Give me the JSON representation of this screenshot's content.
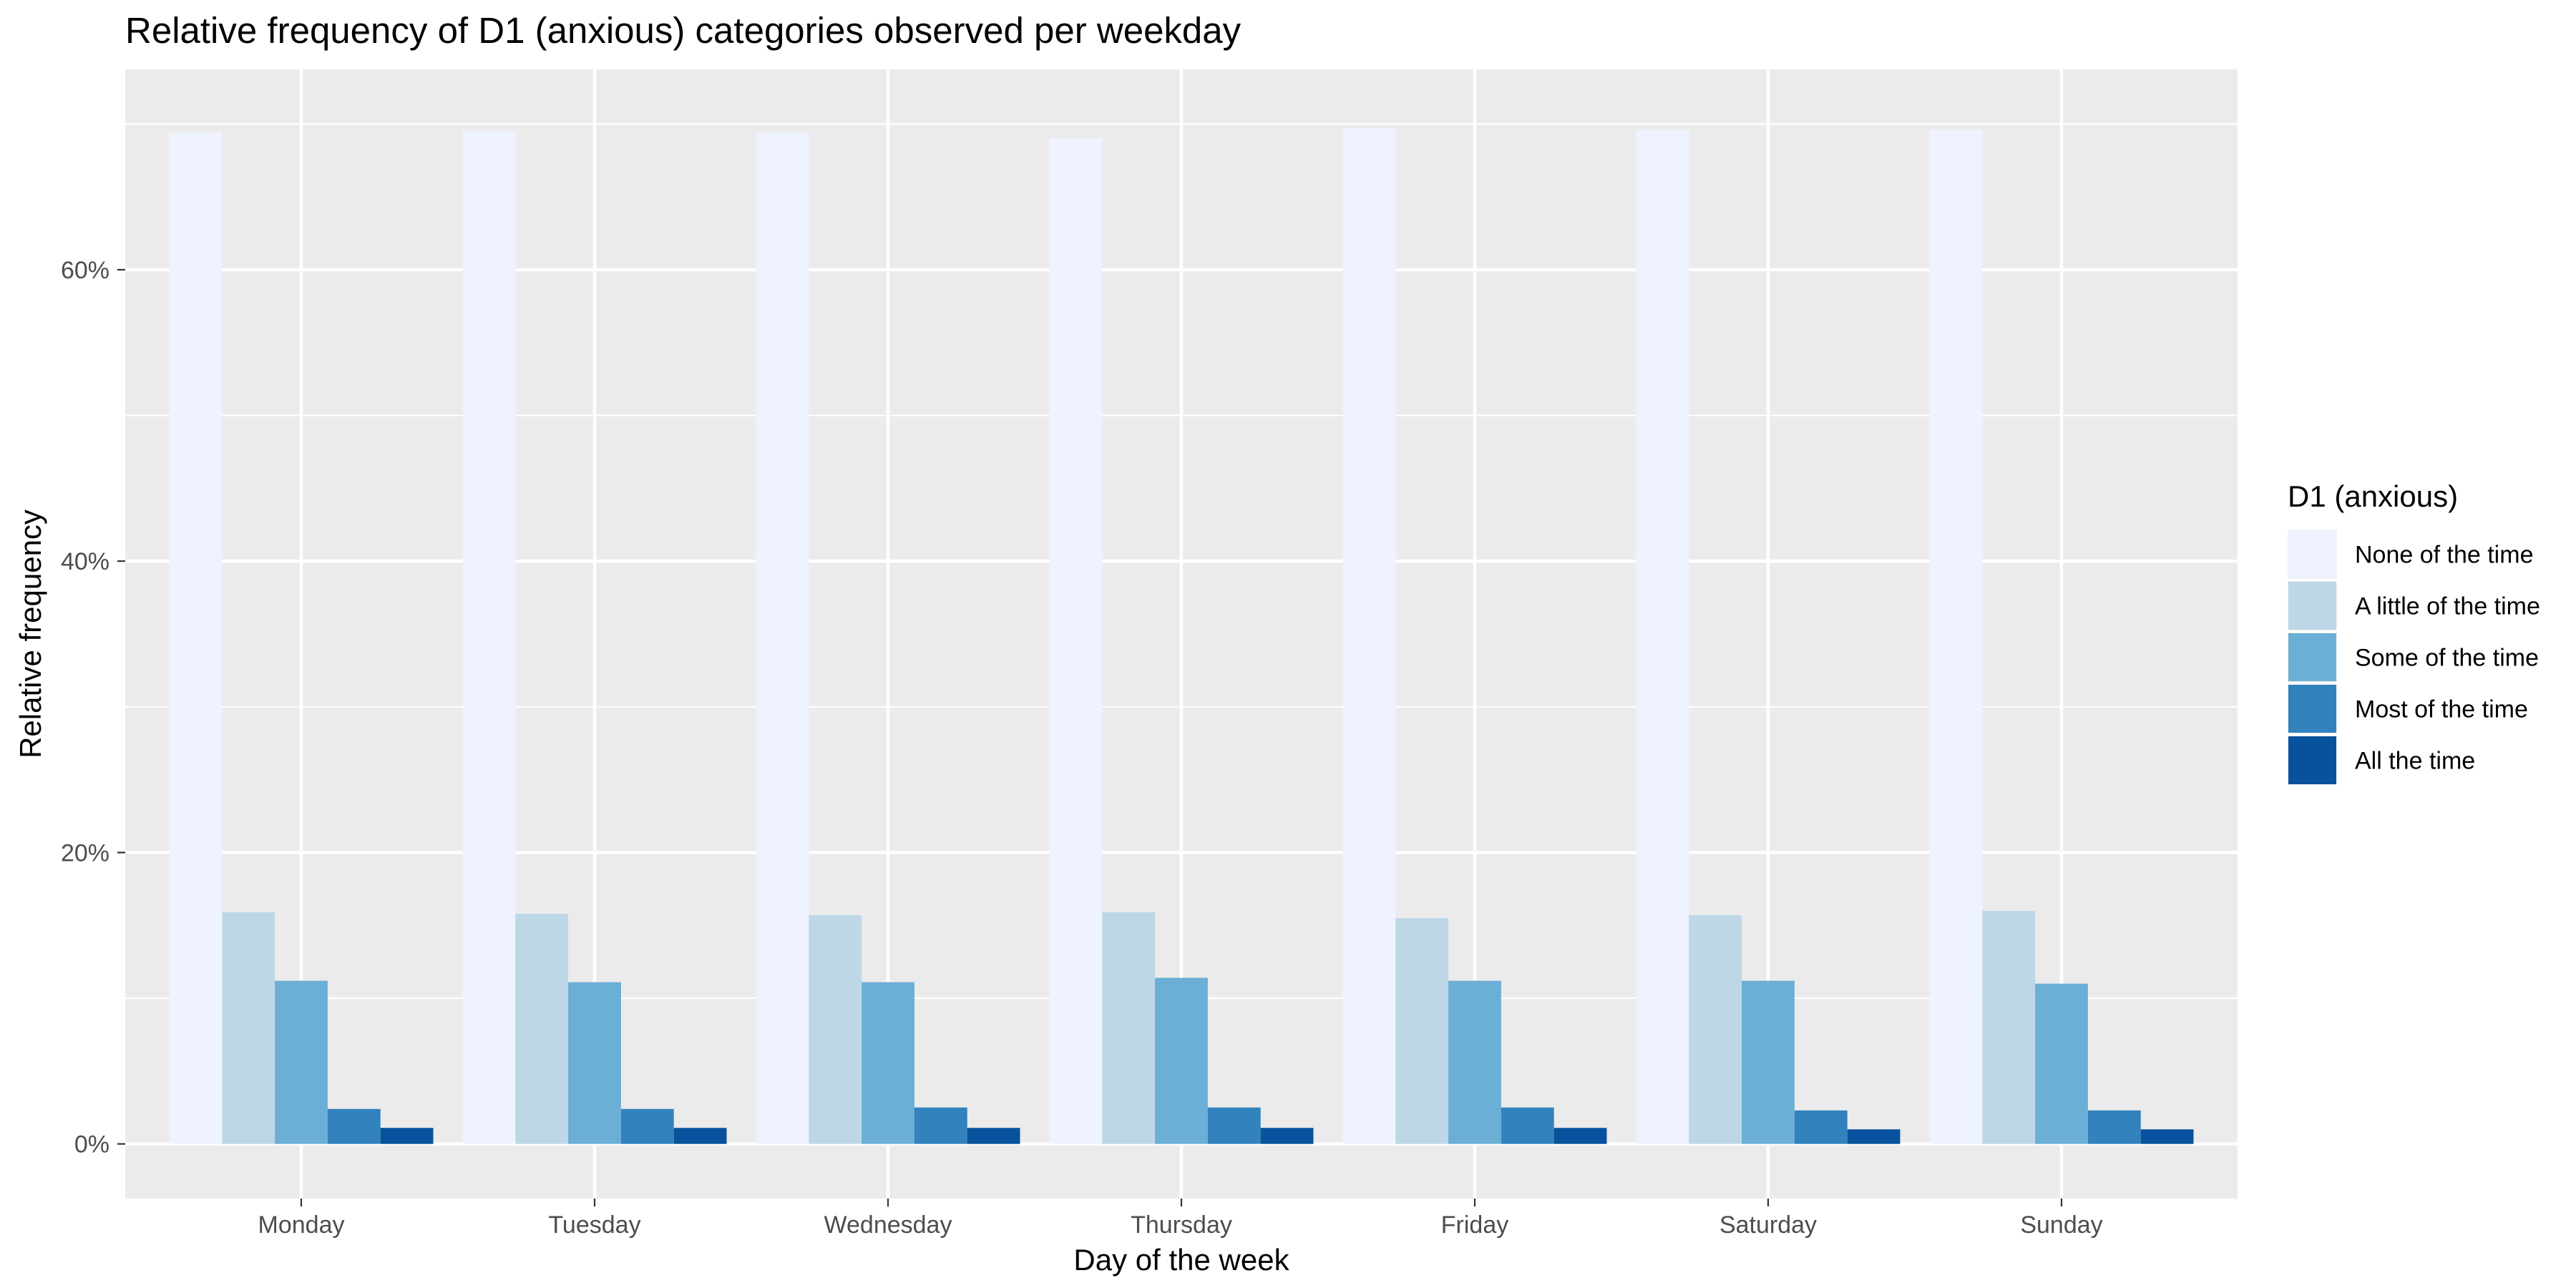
{
  "chart_data": {
    "type": "bar",
    "title": "Relative frequency of D1 (anxious) categories observed per weekday",
    "xlabel": "Day of the week",
    "ylabel": "Relative frequency",
    "categories": [
      "Monday",
      "Tuesday",
      "Wednesday",
      "Thursday",
      "Friday",
      "Saturday",
      "Sunday"
    ],
    "ylim": [
      -0.0375,
      0.7375
    ],
    "y_ticks": [
      0,
      0.2,
      0.4,
      0.6
    ],
    "y_tick_labels": [
      "0%",
      "20%",
      "40%",
      "60%"
    ],
    "grid": true,
    "legend": {
      "title": "D1 (anxious)",
      "position": "right"
    },
    "series": [
      {
        "name": "None of the time",
        "color": "#eff3ff",
        "values": [
          0.694,
          0.695,
          0.694,
          0.69,
          0.697,
          0.696,
          0.696
        ]
      },
      {
        "name": "A little of the time",
        "color": "#bdd7e7",
        "values": [
          0.159,
          0.158,
          0.157,
          0.159,
          0.155,
          0.157,
          0.16
        ]
      },
      {
        "name": "Some of the time",
        "color": "#6baed6",
        "values": [
          0.112,
          0.111,
          0.111,
          0.114,
          0.112,
          0.112,
          0.11
        ]
      },
      {
        "name": "Most of the time",
        "color": "#3182bd",
        "values": [
          0.024,
          0.024,
          0.025,
          0.025,
          0.025,
          0.023,
          0.023
        ]
      },
      {
        "name": "All the time",
        "color": "#08519c",
        "values": [
          0.011,
          0.011,
          0.011,
          0.011,
          0.011,
          0.01,
          0.01
        ]
      }
    ]
  }
}
